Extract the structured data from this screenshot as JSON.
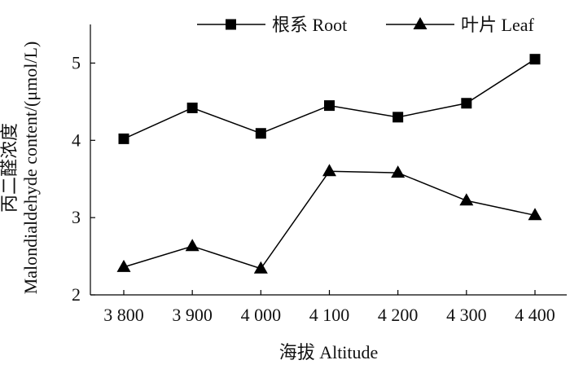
{
  "chart_data": {
    "type": "line",
    "title": "",
    "categories": [
      "3 800",
      "3 900",
      "4 000",
      "4 100",
      "4 200",
      "4 300",
      "4 400"
    ],
    "xlabel": "海拔 Altitude",
    "ylabel_cn": "丙二醛浓度",
    "ylabel_en": "Malondialdehyde content/(μmol/L)",
    "ylim": [
      2,
      5.5
    ],
    "yticks": [
      2,
      3,
      4,
      5
    ],
    "grid": false,
    "legend_position": "top",
    "series": [
      {
        "name": "根系 Root",
        "marker": "square",
        "color": "#000000",
        "values": [
          4.02,
          4.42,
          4.09,
          4.45,
          4.3,
          4.48,
          5.05
        ]
      },
      {
        "name": "叶片 Leaf",
        "marker": "triangle",
        "color": "#000000",
        "values": [
          2.36,
          2.63,
          2.34,
          3.6,
          3.58,
          3.22,
          3.03
        ]
      }
    ]
  }
}
